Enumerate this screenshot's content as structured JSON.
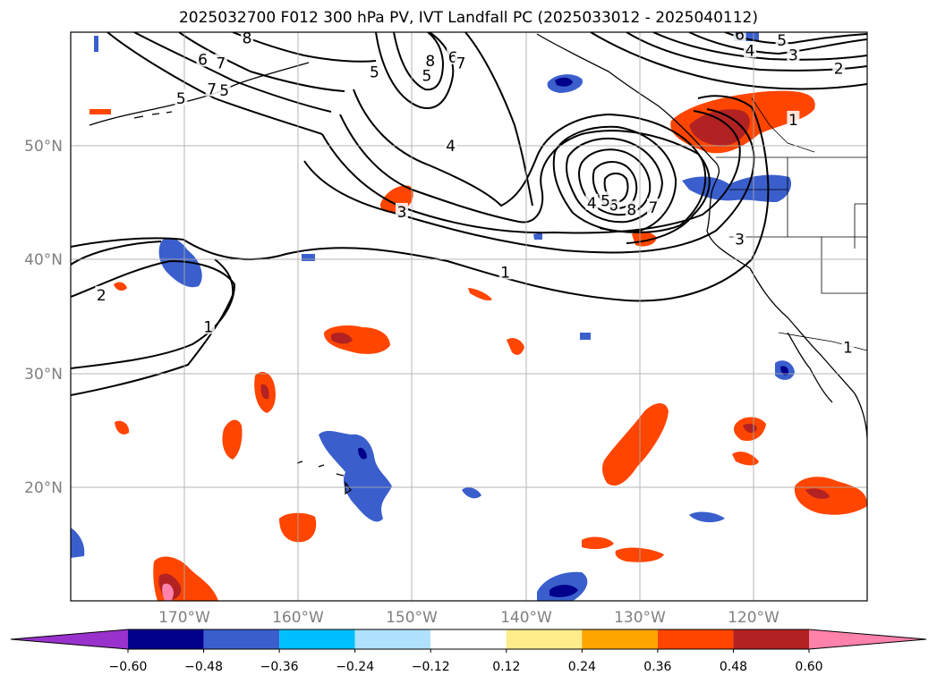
{
  "title": "2025032700 F012 300 hPa PV, IVT Landfall PC (2025033012 - 2025040112)",
  "map": {
    "lon_range": [
      -180,
      -110
    ],
    "lat_range": [
      10,
      60
    ],
    "lat_ticks": [
      {
        "value": 20,
        "label": "20°N"
      },
      {
        "value": 30,
        "label": "30°N"
      },
      {
        "value": 40,
        "label": "40°N"
      },
      {
        "value": 50,
        "label": "50°N"
      }
    ],
    "lon_ticks": [
      {
        "value": -170,
        "label": "170°W"
      },
      {
        "value": -160,
        "label": "160°W"
      },
      {
        "value": -150,
        "label": "150°W"
      },
      {
        "value": -140,
        "label": "140°W"
      },
      {
        "value": -130,
        "label": "130°W"
      },
      {
        "value": -120,
        "label": "120°W"
      }
    ],
    "grid": true,
    "contour_labels": [
      {
        "text": "1",
        "lon": -116.5,
        "lat": 52.3
      },
      {
        "text": "2",
        "lon": -112.5,
        "lat": 56.8
      },
      {
        "text": "3",
        "lon": -116.5,
        "lat": 58.0
      },
      {
        "text": "4",
        "lon": -120.3,
        "lat": 58.4
      },
      {
        "text": "5",
        "lon": -117.5,
        "lat": 59.3
      },
      {
        "text": "6",
        "lon": -121.2,
        "lat": 59.8
      },
      {
        "text": "8",
        "lon": -130.7,
        "lat": 44.4
      },
      {
        "text": "7",
        "lon": -128.8,
        "lat": 44.6
      },
      {
        "text": "6",
        "lon": -132.3,
        "lat": 44.8
      },
      {
        "text": "5",
        "lon": -133.0,
        "lat": 45.2
      },
      {
        "text": "4",
        "lon": -134.2,
        "lat": 45.0
      },
      {
        "text": "3",
        "lon": -121.2,
        "lat": 41.8
      },
      {
        "text": "3",
        "lon": -150.9,
        "lat": 44.2
      },
      {
        "text": "4",
        "lon": -146.6,
        "lat": 50.0
      },
      {
        "text": "5",
        "lon": -148.7,
        "lat": 56.2
      },
      {
        "text": "6",
        "lon": -146.4,
        "lat": 57.8
      },
      {
        "text": "7",
        "lon": -145.7,
        "lat": 57.3
      },
      {
        "text": "8",
        "lon": -148.4,
        "lat": 57.5
      },
      {
        "text": "5",
        "lon": -153.3,
        "lat": 56.5
      },
      {
        "text": "5",
        "lon": -166.5,
        "lat": 54.9
      },
      {
        "text": "7",
        "lon": -167.6,
        "lat": 55.0
      },
      {
        "text": "5",
        "lon": -170.3,
        "lat": 54.2
      },
      {
        "text": "6",
        "lon": -168.4,
        "lat": 57.6
      },
      {
        "text": "7",
        "lon": -166.8,
        "lat": 57.3
      },
      {
        "text": "8",
        "lon": -164.5,
        "lat": 59.5
      },
      {
        "text": "1",
        "lon": -141.8,
        "lat": 38.9
      },
      {
        "text": "2",
        "lon": -177.3,
        "lat": 36.9
      },
      {
        "text": "1",
        "lon": -167.9,
        "lat": 34.1
      },
      {
        "text": "1",
        "lon": -111.7,
        "lat": 32.3
      }
    ]
  },
  "colorbar": {
    "labels": [
      "−0.60",
      "−0.48",
      "−0.36",
      "−0.24",
      "−0.12",
      "0.12",
      "0.24",
      "0.36",
      "0.48",
      "0.60"
    ],
    "colors": [
      "#9932cc",
      "#00008b",
      "#3a5fcd",
      "#00bfff",
      "#b0e2ff",
      "#ffffff",
      "#ffec8b",
      "#ffa500",
      "#ff4500",
      "#b22222",
      "#ff82ab"
    ]
  }
}
